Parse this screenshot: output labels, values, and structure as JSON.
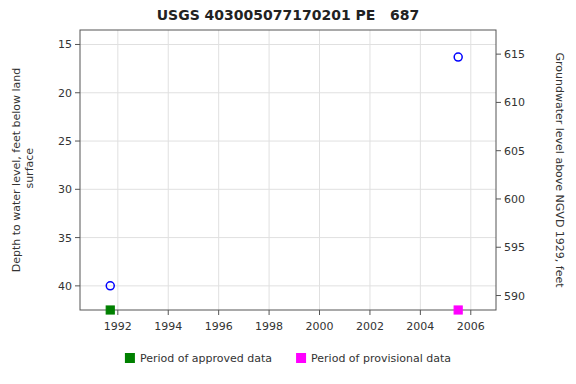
{
  "chart_data": {
    "type": "scatter",
    "title": "USGS 403005077170201 PE   687",
    "ylabel": "Depth to water level, feet below land\n surface",
    "y2label": "Groundwater level above NGVD 1929, feet",
    "series": [
      {
        "x": [
          1991.7,
          2005.5
        ],
        "values": [
          40.0,
          16.3
        ],
        "color": "#0000ff",
        "marker": "circle"
      },
      {
        "name": "Period of approved data",
        "type": "period",
        "x": [
          1991.7
        ],
        "color": "#008000",
        "marker": "square"
      },
      {
        "name": "Period of provisional data",
        "type": "period",
        "x": [
          2005.5
        ],
        "color": "#ff00ff",
        "marker": "square"
      }
    ],
    "xlim": [
      1990.5,
      2007.0
    ],
    "xticks": [
      1992,
      1994,
      1996,
      1998,
      2000,
      2002,
      2004,
      2006
    ],
    "ylim": [
      42.5,
      13.5
    ],
    "yticks": [
      15,
      20,
      25,
      30,
      35,
      40
    ],
    "y2lim": [
      588.5,
      617.5
    ],
    "y2ticks": [
      590,
      595,
      600,
      605,
      610,
      615
    ],
    "grid": true,
    "legend": "bottom"
  }
}
